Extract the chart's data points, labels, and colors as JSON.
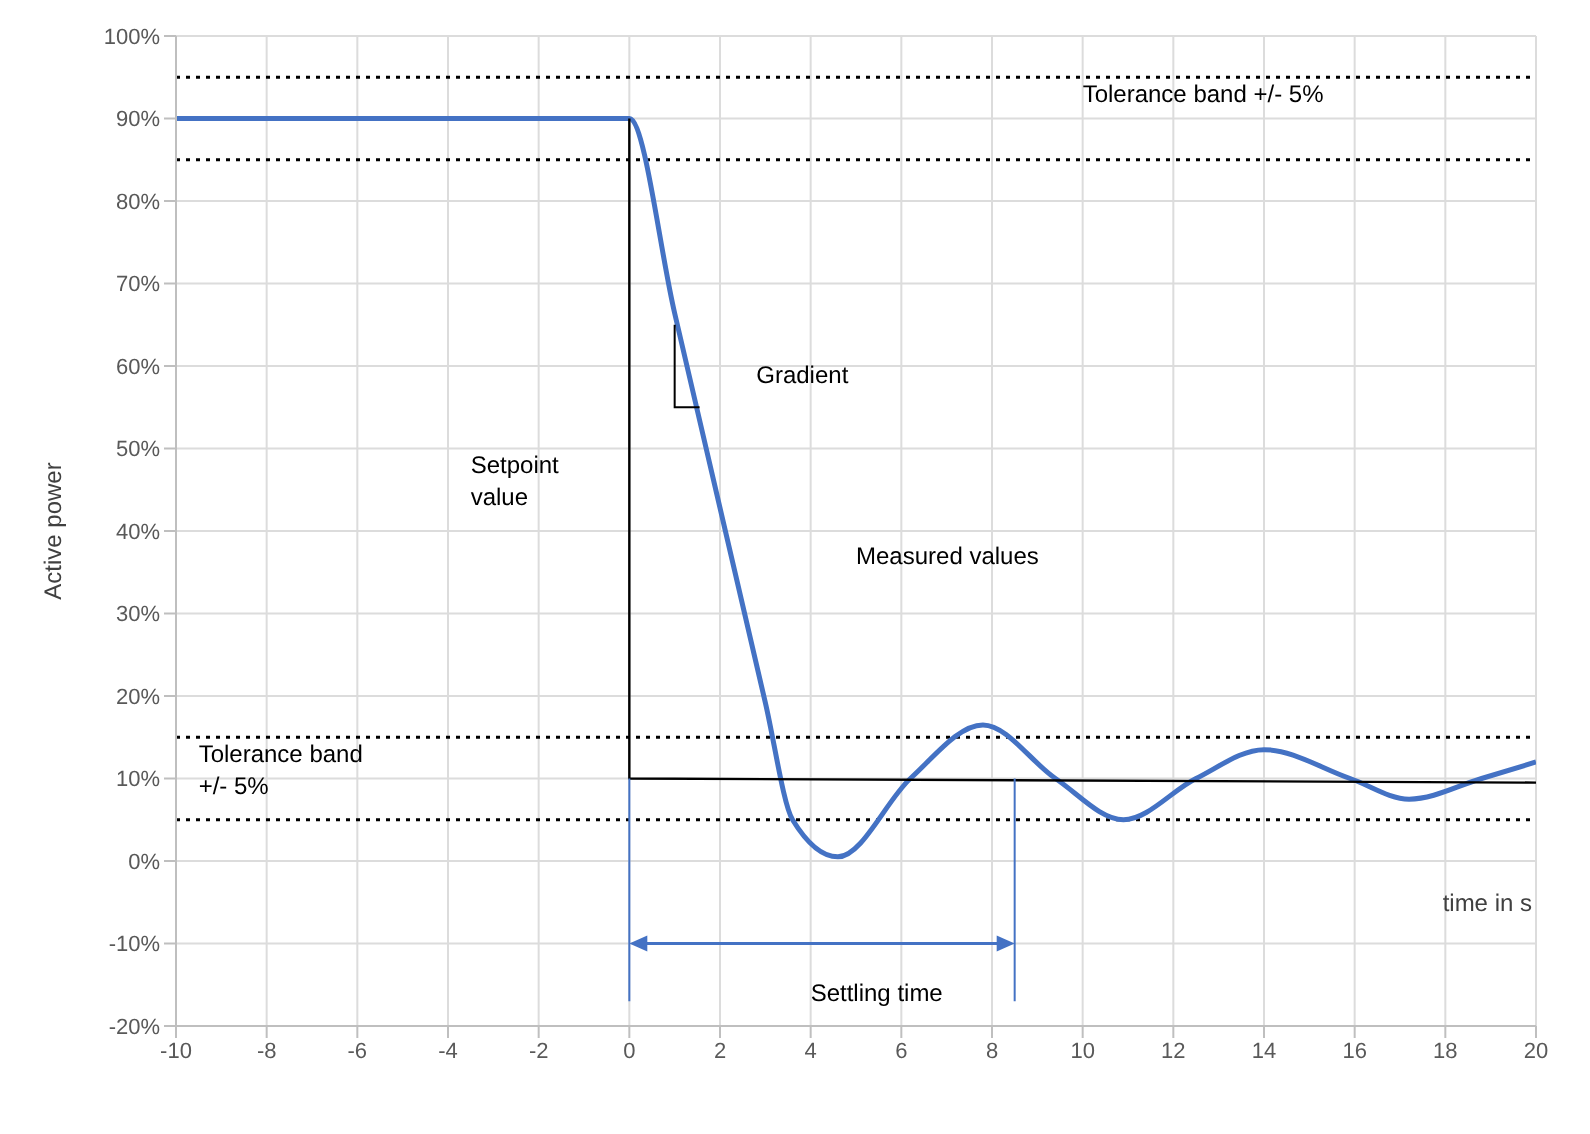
{
  "chart_data": {
    "type": "line",
    "xlabel": "time in s",
    "ylabel": "Active power",
    "series": [
      {
        "color": "#4472c4",
        "x": [
          -10,
          0,
          1,
          2,
          3,
          3.6,
          4.6,
          6.2,
          7.8,
          9.4,
          10.9,
          12.5,
          14,
          15.9,
          17.2,
          18.8,
          20
        ],
        "values": [
          90,
          90,
          66.4,
          42.8,
          19.2,
          5,
          0.5,
          10,
          16.5,
          10,
          5,
          10,
          13.5,
          10,
          7.5,
          10,
          12
        ]
      },
      {
        "color": "#000000",
        "x": [
          0,
          0,
          20
        ],
        "values": [
          90,
          10,
          9.5
        ]
      }
    ],
    "xlim": [
      -10,
      20
    ],
    "xticks": [
      -10,
      -8,
      -6,
      -4,
      -2,
      0,
      2,
      4,
      6,
      8,
      10,
      12,
      14,
      16,
      18,
      20
    ],
    "ylim": [
      -20,
      100
    ],
    "yticks": [
      {
        "value": -20,
        "label": "-20%"
      },
      {
        "value": -10,
        "label": "-10%"
      },
      {
        "value": 0,
        "label": "0%"
      },
      {
        "value": 10,
        "label": "10%"
      },
      {
        "value": 20,
        "label": "20%"
      },
      {
        "value": 30,
        "label": "30%"
      },
      {
        "value": 40,
        "label": "40%"
      },
      {
        "value": 50,
        "label": "50%"
      },
      {
        "value": 60,
        "label": "60%"
      },
      {
        "value": 70,
        "label": "70%"
      },
      {
        "value": 80,
        "label": "80%"
      },
      {
        "value": 90,
        "label": "90%"
      },
      {
        "value": 100,
        "label": "100%"
      }
    ],
    "ref_lines": [
      {
        "axis": "y",
        "value": 95,
        "color": "#000000",
        "line_style": "dotted"
      },
      {
        "axis": "y",
        "value": 85,
        "color": "#000000",
        "line_style": "dotted"
      },
      {
        "axis": "y",
        "value": 15,
        "color": "#000000",
        "line_style": "dotted"
      },
      {
        "axis": "y",
        "value": 5,
        "color": "#000000",
        "line_style": "dotted"
      }
    ],
    "annotations": [
      "Tolerance band +/- 5%",
      "Tolerance band\n+/- 5%",
      "Setpoint\nvalue",
      "Gradient",
      "Measured values",
      "Settling time"
    ],
    "grid": true,
    "marker": "none",
    "line_style": "solid"
  }
}
